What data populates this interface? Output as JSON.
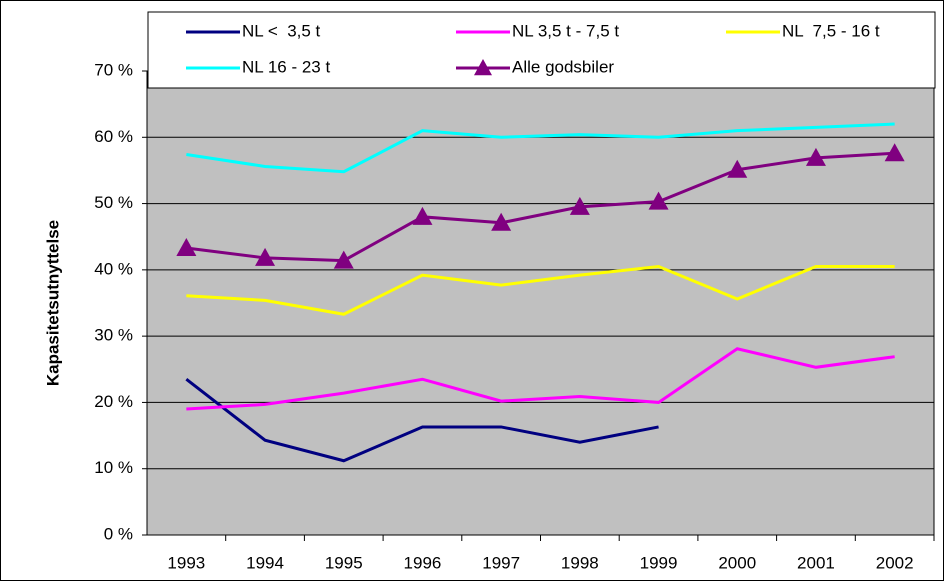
{
  "chart_data": {
    "type": "line",
    "y_label": "Kapasitetsutnyttelse",
    "categories": [
      "1993",
      "1994",
      "1995",
      "1996",
      "1997",
      "1998",
      "1999",
      "2000",
      "2001",
      "2002"
    ],
    "series": [
      {
        "name": "NL <  3,5 t",
        "color": "#000080",
        "values": [
          23.5,
          14.3,
          11.2,
          16.3,
          16.3,
          14.0,
          16.3,
          null,
          null,
          null
        ]
      },
      {
        "name": "NL 3,5 t - 7,5 t",
        "color": "#FF00FF",
        "values": [
          19.0,
          19.7,
          21.4,
          23.5,
          20.2,
          20.9,
          20.0,
          28.1,
          25.3,
          26.9
        ]
      },
      {
        "name": "NL  7,5 - 16 t",
        "color": "#FFFF00",
        "values": [
          36.1,
          35.4,
          33.3,
          39.2,
          37.7,
          39.2,
          40.5,
          35.6,
          40.5,
          40.5
        ]
      },
      {
        "name": "NL 16 - 23 t",
        "color": "#00FFFF",
        "values": [
          57.4,
          55.6,
          54.8,
          61.0,
          60.0,
          60.4,
          60.0,
          61.0,
          61.5,
          62.0
        ]
      },
      {
        "name": "Alle godsbiler",
        "color": "#800080",
        "marker": "triangle",
        "values": [
          43.3,
          41.8,
          41.4,
          48.0,
          47.1,
          49.5,
          50.3,
          55.1,
          56.9,
          57.6
        ]
      }
    ],
    "ylim": [
      0,
      70
    ],
    "yticks": [
      {
        "value": 0,
        "label": "0 %"
      },
      {
        "value": 10,
        "label": "10 %"
      },
      {
        "value": 20,
        "label": "20 %"
      },
      {
        "value": 30,
        "label": "30 %"
      },
      {
        "value": 40,
        "label": "40 %"
      },
      {
        "value": 50,
        "label": "50 %"
      },
      {
        "value": 60,
        "label": "60 %"
      },
      {
        "value": 70,
        "label": "70 %"
      }
    ],
    "grid": true,
    "plot_background": "#C0C0C0",
    "legend_position": "top"
  }
}
